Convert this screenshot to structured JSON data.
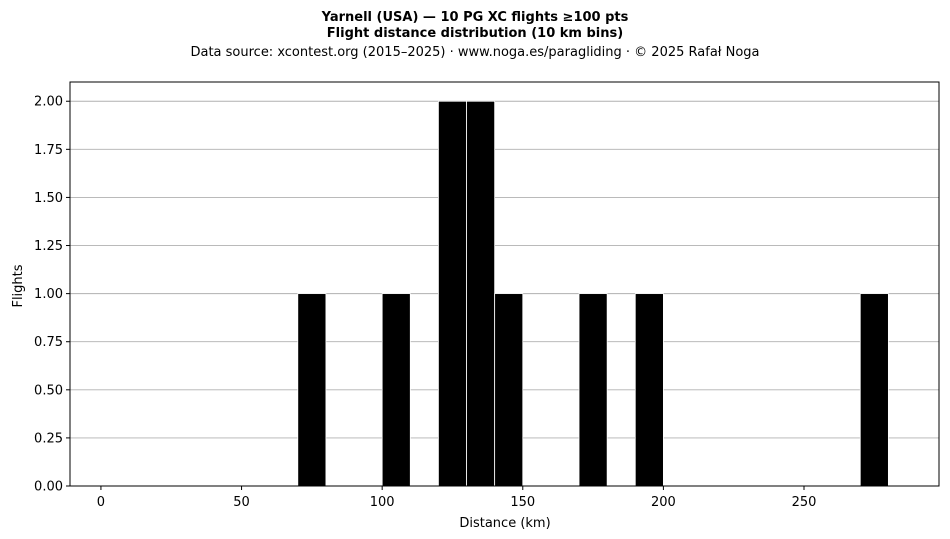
{
  "chart_data": {
    "type": "bar",
    "title": "Yarnell (USA)  —  10 PG XC flights ≥100 pts",
    "subtitle": "Flight distance distribution (10 km bins)",
    "source": "Data source: xcontest.org (2015–2025)  ·  www.noga.es/paragliding  ·  © 2025 Rafał Noga",
    "xlabel": "Distance (km)",
    "ylabel": "Flights",
    "xlim": [
      -11,
      298
    ],
    "ylim": [
      0,
      2.1
    ],
    "xticks": [
      0,
      50,
      100,
      150,
      200,
      250
    ],
    "yticks": [
      "0.00",
      "0.25",
      "0.50",
      "0.75",
      "1.00",
      "1.25",
      "1.50",
      "1.75",
      "2.00"
    ],
    "grid": "horizontal",
    "bin_width": 10,
    "bins": [
      {
        "start": 70,
        "end": 80,
        "count": 1
      },
      {
        "start": 100,
        "end": 110,
        "count": 1
      },
      {
        "start": 120,
        "end": 130,
        "count": 2
      },
      {
        "start": 130,
        "end": 140,
        "count": 2
      },
      {
        "start": 140,
        "end": 150,
        "count": 1
      },
      {
        "start": 170,
        "end": 180,
        "count": 1
      },
      {
        "start": 190,
        "end": 200,
        "count": 1
      },
      {
        "start": 270,
        "end": 280,
        "count": 1
      }
    ],
    "colors": {
      "bar_fill": "#000000",
      "bar_edge": "#ffffff",
      "grid": "#b0b0b0",
      "axis": "#000000"
    }
  }
}
